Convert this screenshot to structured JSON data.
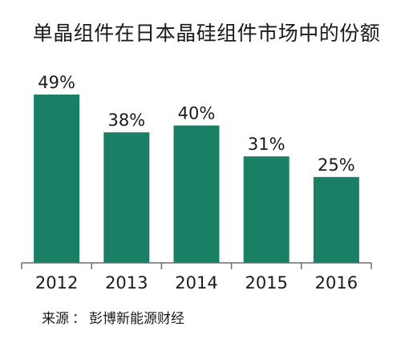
{
  "title": "单晶组件在日本晶硅组件市场中的份额",
  "source": {
    "label": "来源",
    "separator": "：",
    "name": "彭博新能源财经"
  },
  "colors": {
    "bar": "#197f65",
    "axis": "#6b6b6b",
    "text": "#1a1a1a"
  },
  "chart_data": {
    "type": "bar",
    "title": "单晶组件在日本晶硅组件市场中的份额",
    "categories": [
      "2012",
      "2013",
      "2014",
      "2015",
      "2016"
    ],
    "values": [
      49,
      38,
      40,
      31,
      25
    ],
    "value_labels": [
      "49%",
      "38%",
      "40%",
      "31%",
      "25%"
    ],
    "xlabel": "",
    "ylabel": "",
    "ylim": [
      0,
      49
    ],
    "grid": false,
    "legend": "none"
  }
}
